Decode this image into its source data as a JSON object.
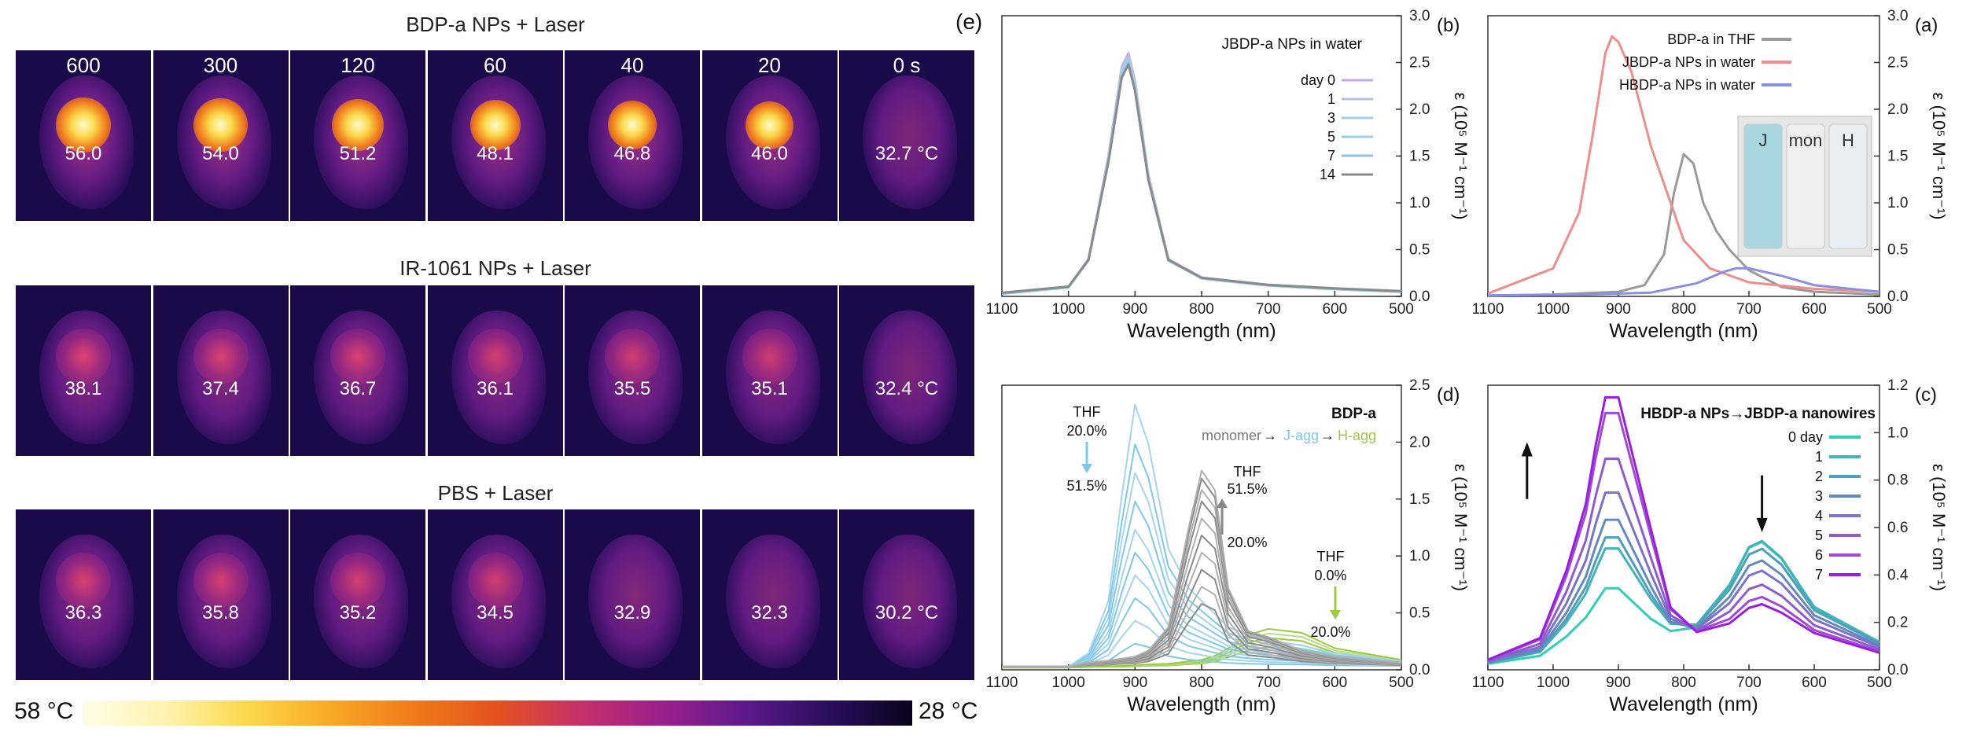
{
  "thermal": {
    "row1": {
      "title": "BDP-a NPs + Laser",
      "times": [
        "600",
        "300",
        "120",
        "60",
        "40",
        "20",
        "0 s"
      ],
      "temps": [
        "56.0",
        "54.0",
        "51.2",
        "48.1",
        "46.8",
        "46.0",
        "32.7 °C"
      ],
      "hot": [
        1.0,
        0.95,
        0.88,
        0.8,
        0.75,
        0.7,
        0.1
      ]
    },
    "row2": {
      "title": "IR-1061 NPs + Laser",
      "temps": [
        "38.1",
        "37.4",
        "36.7",
        "36.1",
        "35.5",
        "35.1",
        "32.4 °C"
      ],
      "hot": [
        0.4,
        0.38,
        0.36,
        0.3,
        0.28,
        0.25,
        0.1
      ]
    },
    "row3": {
      "title": "PBS + Laser",
      "temps": [
        "36.3",
        "35.8",
        "35.2",
        "34.5",
        "32.9",
        "32.3",
        "30.2 °C"
      ],
      "hot": [
        0.35,
        0.32,
        0.3,
        0.28,
        0.2,
        0.15,
        0.1
      ]
    },
    "colorbar": {
      "max_label": "58 °C",
      "min_label": "28 °C"
    },
    "panel_label": "(e)"
  },
  "chart_data": [
    {
      "panel": "(a)",
      "type": "line",
      "xlabel": "Wavelength (nm)",
      "ylabel": "ε (10⁵ M⁻¹ cm⁻¹)",
      "xlim": [
        500,
        1100
      ],
      "ylim": [
        0,
        3.0
      ],
      "x_reversed": true,
      "xticks": [
        "500",
        "600",
        "700",
        "800",
        "900",
        "1000",
        "1100"
      ],
      "yticks": [
        "0.0",
        "0.5",
        "1.0",
        "1.5",
        "2.0",
        "2.5",
        "3.0"
      ],
      "legend": [
        "BDP-a in THF",
        "JBDP-a NPs in water",
        "HBDP-a NPs in water"
      ],
      "inset_labels": [
        "H",
        "mon",
        "J"
      ],
      "series": [
        {
          "name": "BDP-a in THF",
          "color": "#9a9a9a",
          "x": [
            500,
            600,
            650,
            700,
            730,
            750,
            770,
            785,
            800,
            815,
            830,
            860,
            900,
            1000,
            1100
          ],
          "y": [
            0.02,
            0.05,
            0.1,
            0.28,
            0.5,
            0.7,
            1.0,
            1.42,
            1.52,
            1.1,
            0.45,
            0.12,
            0.05,
            0.02,
            0.01
          ]
        },
        {
          "name": "JBDP-a NPs in water",
          "color": "#ef8d8d",
          "x": [
            500,
            600,
            700,
            760,
            800,
            850,
            880,
            900,
            910,
            920,
            940,
            960,
            1000,
            1100
          ],
          "y": [
            0.05,
            0.08,
            0.15,
            0.3,
            0.6,
            1.6,
            2.4,
            2.72,
            2.78,
            2.6,
            1.7,
            0.9,
            0.3,
            0.03
          ]
        },
        {
          "name": "HBDP-a NPs in water",
          "color": "#8b8fe0",
          "x": [
            500,
            600,
            650,
            700,
            720,
            740,
            780,
            850,
            950,
            1100
          ],
          "y": [
            0.05,
            0.12,
            0.22,
            0.3,
            0.3,
            0.26,
            0.14,
            0.04,
            0.02,
            0.01
          ]
        }
      ]
    },
    {
      "panel": "(b)",
      "type": "line",
      "xlabel": "Wavelength (nm)",
      "ylabel": "ε (10⁵ M⁻¹ cm⁻¹)",
      "xlim": [
        500,
        1100
      ],
      "ylim": [
        0,
        3.0
      ],
      "x_reversed": true,
      "xticks": [
        "500",
        "600",
        "700",
        "800",
        "900",
        "1000",
        "1100"
      ],
      "yticks": [
        "0.0",
        "0.5",
        "1.0",
        "1.5",
        "2.0",
        "2.5",
        "3.0"
      ],
      "legend_title": "JBDP-a NPs in water",
      "legend": [
        "day 0",
        "1",
        "3",
        "5",
        "7",
        "14"
      ],
      "series_colors": [
        "#c7a8e0",
        "#bcbce8",
        "#a5cde8",
        "#9bcfe2",
        "#8ec4dc",
        "#8a8a8a"
      ],
      "x": [
        500,
        600,
        700,
        800,
        850,
        880,
        900,
        910,
        920,
        940,
        970,
        1000,
        1100
      ],
      "y": [
        0.05,
        0.08,
        0.12,
        0.2,
        0.4,
        1.3,
        2.3,
        2.6,
        2.45,
        1.5,
        0.4,
        0.1,
        0.03
      ]
    },
    {
      "panel": "(c)",
      "type": "line",
      "xlabel": "Wavelength (nm)",
      "ylabel": "ε (10⁵ M⁻¹ cm⁻¹)",
      "xlim": [
        500,
        1100
      ],
      "ylim": [
        0,
        1.2
      ],
      "x_reversed": true,
      "xticks": [
        "500",
        "600",
        "700",
        "800",
        "900",
        "1000",
        "1100"
      ],
      "yticks": [
        "0.0",
        "0.2",
        "0.4",
        "0.6",
        "0.8",
        "1.0",
        "1.2"
      ],
      "legend_title": "HBDP-a NPs→JBDP-a nanowires",
      "legend": [
        "0 day",
        "1",
        "2",
        "3",
        "4",
        "5",
        "6",
        "7"
      ],
      "series_colors": [
        "#2ccfb8",
        "#3fb5b8",
        "#4d9fbc",
        "#6289c0",
        "#7a73c6",
        "#8f5cd0",
        "#a14ad8",
        "#9b1ee0"
      ],
      "x": [
        500,
        600,
        650,
        680,
        700,
        730,
        780,
        820,
        850,
        900,
        920,
        935,
        950,
        980,
        1020,
        1100
      ],
      "j_shape": [
        0.03,
        0.08,
        0.12,
        0.14,
        0.13,
        0.1,
        0.1,
        0.2,
        0.5,
        1.0,
        1.0,
        0.82,
        0.6,
        0.35,
        0.1,
        0.02
      ],
      "h_shape": [
        0.08,
        0.2,
        0.38,
        0.44,
        0.42,
        0.28,
        0.12,
        0.08,
        0.05,
        0.04,
        0.04,
        0.03,
        0.03,
        0.02,
        0.01,
        0.0
      ],
      "j_peaks": [
        0.28,
        0.45,
        0.5,
        0.58,
        0.7,
        0.85,
        1.05,
        1.12
      ],
      "h_peaks": [
        0.48,
        0.46,
        0.42,
        0.36,
        0.3,
        0.22,
        0.14,
        0.1
      ]
    },
    {
      "panel": "(d)",
      "type": "line",
      "xlabel": "Wavelength (nm)",
      "ylabel": "ε (10⁵ M⁻¹ cm⁻¹)",
      "xlim": [
        500,
        1100
      ],
      "ylim": [
        0,
        2.5
      ],
      "x_reversed": true,
      "xticks": [
        "500",
        "600",
        "700",
        "800",
        "900",
        "1000",
        "1100"
      ],
      "yticks": [
        "0.0",
        "0.5",
        "1.0",
        "1.5",
        "2.0",
        "2.5"
      ],
      "legend_title": "BDP-a",
      "legend_chain": [
        "H-agg",
        "J-agg",
        "monomer"
      ],
      "legend_chain_colors": [
        "#9ccc3c",
        "#7ec8e8",
        "#777777"
      ],
      "annotations": [
        "THF",
        "20.0%",
        "51.5%",
        "THF",
        "51.5%",
        "20.0%",
        "THF",
        "0.0%",
        "20.0%"
      ],
      "x": [
        500,
        600,
        650,
        700,
        730,
        760,
        780,
        800,
        820,
        850,
        880,
        900,
        920,
        940,
        970,
        1000,
        1100
      ],
      "mono_shape": [
        0.02,
        0.05,
        0.08,
        0.15,
        0.18,
        0.4,
        0.9,
        1.0,
        0.7,
        0.2,
        0.08,
        0.05,
        0.04,
        0.03,
        0.02,
        0.0,
        0.0
      ],
      "j_shape": [
        0.02,
        0.05,
        0.08,
        0.1,
        0.12,
        0.15,
        0.2,
        0.25,
        0.3,
        0.45,
        0.85,
        1.0,
        0.65,
        0.25,
        0.05,
        0.0,
        0.0
      ],
      "h_shape": [
        0.1,
        0.25,
        0.45,
        0.5,
        0.42,
        0.25,
        0.15,
        0.1,
        0.08,
        0.05,
        0.04,
        0.03,
        0.02,
        0.02,
        0.01,
        0.0,
        0.0
      ],
      "mono_peaks": [
        0.55,
        0.7,
        0.85,
        1.0,
        1.15,
        1.3,
        1.45,
        1.55,
        1.65,
        1.72
      ],
      "j_peaks": [
        0.2,
        0.4,
        0.6,
        0.8,
        1.0,
        1.2,
        1.45,
        1.7,
        1.95,
        2.3
      ],
      "h_peaks": [
        0.18,
        0.22,
        0.26,
        0.3,
        0.34
      ]
    }
  ]
}
